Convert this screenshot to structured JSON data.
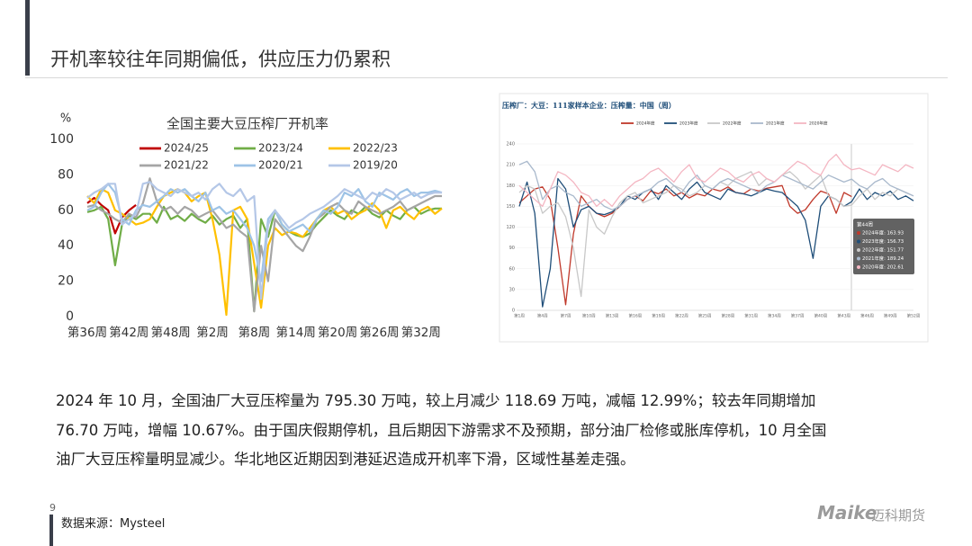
{
  "header": {
    "title": "开机率较往年同期偏低，供应压力仍累积"
  },
  "chart_data": [
    {
      "type": "line",
      "title": "全国主要大豆压榨厂开机率",
      "y_label": "%",
      "grid": false,
      "legend": "top",
      "categories": [
        "第36周",
        null,
        null,
        null,
        null,
        null,
        "第42周",
        null,
        null,
        null,
        null,
        null,
        "第48周",
        null,
        null,
        null,
        null,
        null,
        "第2周",
        null,
        null,
        null,
        null,
        null,
        "第8周",
        null,
        null,
        null,
        null,
        null,
        "第14周",
        null,
        null,
        null,
        null,
        null,
        "第20周",
        null,
        null,
        null,
        null,
        null,
        "第26周",
        null,
        null,
        null,
        null,
        null,
        "第32周",
        null,
        null,
        null
      ],
      "ylim": [
        0,
        100
      ],
      "yticks": [
        0,
        20,
        40,
        60,
        80,
        100
      ],
      "series": [
        {
          "name": "2024/25",
          "color": "#c00000",
          "values": [
            64,
            67,
            63,
            60,
            47,
            56,
            60,
            63,
            null,
            null,
            null,
            null,
            null,
            null,
            null,
            null,
            null,
            null,
            null,
            null,
            null,
            null,
            null,
            null,
            null,
            null,
            null,
            null,
            null,
            null,
            null,
            null,
            null,
            null,
            null,
            null,
            null,
            null,
            null,
            null,
            null,
            null,
            null,
            null,
            null,
            null,
            null,
            null,
            null,
            null,
            null,
            null
          ]
        },
        {
          "name": "2023/24",
          "color": "#70ad47",
          "values": [
            59,
            60,
            62,
            55,
            29,
            52,
            57,
            55,
            58,
            58,
            53,
            62,
            55,
            57,
            54,
            58,
            55,
            53,
            57,
            52,
            55,
            57,
            50,
            55,
            3,
            55,
            45,
            60,
            52,
            48,
            46,
            45,
            47,
            52,
            56,
            60,
            57,
            55,
            60,
            58,
            62,
            58,
            56,
            60,
            57,
            55,
            60,
            62,
            58,
            60,
            61,
            61
          ]
        },
        {
          "name": "2022/23",
          "color": "#ffc000",
          "values": [
            68,
            64,
            72,
            70,
            60,
            58,
            55,
            52,
            53,
            55,
            62,
            68,
            70,
            72,
            70,
            65,
            68,
            70,
            55,
            35,
            1,
            60,
            62,
            55,
            30,
            5,
            40,
            50,
            46,
            48,
            47,
            45,
            50,
            55,
            60,
            62,
            58,
            60,
            55,
            58,
            60,
            64,
            60,
            50,
            60,
            62,
            58,
            55,
            60,
            62,
            58,
            61
          ]
        },
        {
          "name": "2021/22",
          "color": "#a5a5a5",
          "values": [
            62,
            63,
            60,
            58,
            55,
            53,
            58,
            56,
            64,
            78,
            65,
            60,
            62,
            58,
            62,
            60,
            56,
            58,
            60,
            55,
            50,
            52,
            48,
            45,
            3,
            40,
            20,
            55,
            50,
            45,
            40,
            37,
            45,
            55,
            58,
            62,
            64,
            60,
            58,
            65,
            62,
            60,
            58,
            60,
            62,
            65,
            60,
            62,
            64,
            66,
            68,
            68
          ]
        },
        {
          "name": "2020/21",
          "color": "#9dc3e6",
          "values": [
            60,
            62,
            70,
            75,
            70,
            55,
            52,
            60,
            63,
            62,
            65,
            68,
            72,
            70,
            72,
            68,
            65,
            70,
            60,
            62,
            58,
            60,
            55,
            50,
            40,
            20,
            55,
            60,
            52,
            48,
            50,
            52,
            48,
            55,
            60,
            58,
            62,
            70,
            68,
            72,
            65,
            62,
            70,
            68,
            66,
            70,
            72,
            68,
            70,
            70,
            71,
            70
          ]
        },
        {
          "name": "2019/20",
          "color": "#b4c7e7",
          "values": [
            67,
            70,
            72,
            75,
            75,
            52,
            55,
            58,
            75,
            76,
            72,
            70,
            68,
            72,
            70,
            68,
            70,
            66,
            72,
            75,
            70,
            68,
            72,
            65,
            68,
            10,
            52,
            60,
            55,
            50,
            53,
            55,
            58,
            60,
            62,
            65,
            68,
            72,
            70,
            68,
            66,
            70,
            68,
            72,
            70,
            66,
            68,
            70,
            67,
            69,
            70,
            70
          ]
        }
      ]
    },
    {
      "type": "line",
      "title": "压榨厂：大豆：111家样本企业：压榨量：中国（周）",
      "grid": true,
      "legend": "top",
      "categories": [
        "第1周",
        null,
        null,
        "第4周",
        null,
        null,
        "第7周",
        null,
        null,
        "第10周",
        null,
        null,
        "第13周",
        null,
        null,
        "第16周",
        null,
        null,
        "第19周",
        null,
        null,
        "第22周",
        null,
        null,
        "第25周",
        null,
        null,
        "第28周",
        null,
        null,
        "第31周",
        null,
        null,
        "第34周",
        null,
        null,
        "第37周",
        null,
        null,
        "第40周",
        null,
        null,
        "第43周",
        null,
        null,
        "第46周",
        null,
        null,
        "第49周",
        null,
        null,
        "第52周"
      ],
      "ylim": [
        0,
        240
      ],
      "yticks": [
        0,
        30,
        60,
        90,
        120,
        150,
        180,
        210,
        240
      ],
      "series": [
        {
          "name": "2024年度",
          "color": "#c0392b",
          "values": [
            155,
            165,
            175,
            178,
            160,
            90,
            8,
            110,
            165,
            150,
            140,
            135,
            140,
            150,
            160,
            165,
            158,
            172,
            168,
            175,
            165,
            170,
            162,
            168,
            165,
            175,
            172,
            178,
            170,
            168,
            175,
            172,
            176,
            178,
            180,
            150,
            140,
            145,
            160,
            172,
            168,
            140,
            170,
            163.93,
            null,
            null,
            null,
            null,
            null,
            null,
            null,
            null
          ]
        },
        {
          "name": "2023年度",
          "color": "#1f4e79",
          "values": [
            150,
            185,
            140,
            5,
            60,
            190,
            175,
            120,
            145,
            150,
            140,
            138,
            142,
            150,
            165,
            160,
            170,
            175,
            160,
            180,
            170,
            160,
            175,
            185,
            170,
            165,
            160,
            175,
            170,
            168,
            165,
            170,
            175,
            172,
            170,
            160,
            150,
            130,
            75,
            150,
            165,
            160,
            150,
            156.73,
            175,
            160,
            170,
            165,
            172,
            160,
            165,
            158
          ]
        },
        {
          "name": "2022年度",
          "color": "#c8c8c8",
          "values": [
            170,
            180,
            175,
            140,
            150,
            155,
            135,
            90,
            20,
            145,
            120,
            110,
            135,
            155,
            165,
            170,
            155,
            160,
            165,
            170,
            180,
            175,
            165,
            170,
            180,
            175,
            185,
            180,
            190,
            195,
            200,
            180,
            190,
            185,
            195,
            200,
            190,
            175,
            185,
            195,
            165,
            160,
            150,
            151.77,
            165,
            175,
            160,
            170,
            165,
            175,
            170,
            165
          ]
        },
        {
          "name": "2021年度",
          "color": "#a9b9cc",
          "values": [
            210,
            215,
            200,
            160,
            175,
            180,
            170,
            165,
            150,
            155,
            160,
            150,
            145,
            150,
            160,
            165,
            170,
            175,
            185,
            190,
            180,
            170,
            185,
            195,
            180,
            175,
            185,
            190,
            185,
            180,
            175,
            170,
            180,
            185,
            195,
            190,
            185,
            180,
            175,
            185,
            195,
            190,
            185,
            189.24,
            180,
            175,
            185,
            190,
            180,
            175,
            170,
            165
          ]
        },
        {
          "name": "2020年度",
          "color": "#f4b6c2",
          "values": [
            180,
            170,
            160,
            150,
            175,
            200,
            195,
            185,
            170,
            165,
            150,
            160,
            150,
            165,
            175,
            185,
            190,
            200,
            205,
            195,
            185,
            200,
            210,
            190,
            185,
            195,
            205,
            200,
            190,
            185,
            195,
            200,
            190,
            185,
            195,
            205,
            215,
            210,
            200,
            195,
            215,
            225,
            210,
            202.61,
            205,
            200,
            195,
            210,
            205,
            200,
            210,
            205
          ]
        }
      ],
      "tooltip": {
        "title": "第44周",
        "items": [
          "2024年度: 163.93",
          "2023年度: 156.73",
          "2022年度: 151.77",
          "2021年度: 189.24",
          "2020年度: 202.61"
        ]
      }
    }
  ],
  "body": {
    "lines": [
      "2024 年 10 月，全国油厂大豆压榨量为 795.30 万吨，较上月减少 118.69 万吨，减幅 12.99%；较去年同期增加",
      "76.70 万吨，增幅 10.67%。由于国庆假期停机，且后期因下游需求不及预期，部分油厂检修或胀库停机，10 月全国",
      "油厂大豆压榨量明显减少。华北地区近期因到港延迟造成开机率下滑，区域性基差走强。"
    ]
  },
  "footer": {
    "page": "9",
    "source": "数据来源：Mysteel",
    "logo": "Maike",
    "logo_cn": "迈科期货"
  }
}
